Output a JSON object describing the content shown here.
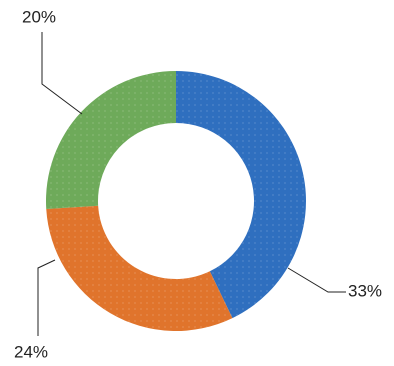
{
  "chart_data": {
    "type": "donut",
    "categories": [
      null,
      null,
      null
    ],
    "values": [
      33,
      24,
      20
    ],
    "value_labels": [
      "33%",
      "24%",
      "20%"
    ],
    "colors": [
      "#2f6fbf",
      "#e0742c",
      "#6eaa5a"
    ]
  }
}
